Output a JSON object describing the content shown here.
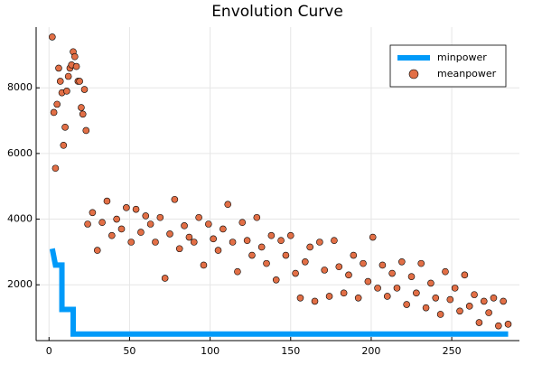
{
  "chart_data": {
    "type": "scatter",
    "title": "Envolution Curve",
    "xlim": [
      -8,
      292
    ],
    "ylim": [
      300,
      9850
    ],
    "xticks": [
      0,
      50,
      100,
      150,
      200,
      250
    ],
    "yticks": [
      2000,
      4000,
      6000,
      8000
    ],
    "grid": true,
    "legend": "top-right",
    "series": [
      {
        "name": "minpower",
        "type": "line",
        "color": "#009af9",
        "x": [
          2,
          4,
          4,
          8,
          8,
          15,
          15,
          285
        ],
        "values": [
          3100,
          2600,
          2600,
          2600,
          1250,
          1250,
          500,
          500
        ]
      },
      {
        "name": "meanpower",
        "type": "scatter",
        "color": "#e26f46",
        "x": [
          2,
          3,
          4,
          5,
          6,
          7,
          8,
          9,
          10,
          11,
          12,
          13,
          14,
          15,
          16,
          17,
          18,
          19,
          20,
          21,
          22,
          23,
          24,
          27,
          30,
          33,
          36,
          39,
          42,
          45,
          48,
          51,
          54,
          57,
          60,
          63,
          66,
          69,
          72,
          75,
          78,
          81,
          84,
          87,
          90,
          93,
          96,
          99,
          102,
          105,
          108,
          111,
          114,
          117,
          120,
          123,
          126,
          129,
          132,
          135,
          138,
          141,
          144,
          147,
          150,
          153,
          156,
          159,
          162,
          165,
          168,
          171,
          174,
          177,
          180,
          183,
          186,
          189,
          192,
          195,
          198,
          201,
          204,
          207,
          210,
          213,
          216,
          219,
          222,
          225,
          228,
          231,
          234,
          237,
          240,
          243,
          246,
          249,
          252,
          255,
          258,
          261,
          264,
          267,
          270,
          273,
          276,
          279,
          282,
          285
        ],
        "values": [
          9550,
          7250,
          5550,
          7500,
          8600,
          8200,
          7850,
          6250,
          6800,
          7900,
          8350,
          8600,
          8700,
          9100,
          8950,
          8650,
          8200,
          8200,
          7400,
          7200,
          7950,
          6700,
          3850,
          4200,
          3050,
          3900,
          4550,
          3500,
          4000,
          3700,
          4350,
          3300,
          4300,
          3600,
          4100,
          3850,
          3300,
          4050,
          2200,
          3550,
          4600,
          3100,
          3800,
          3450,
          3300,
          4050,
          2600,
          3850,
          3400,
          3050,
          3700,
          4450,
          3300,
          2400,
          3900,
          3350,
          2900,
          4050,
          3150,
          2650,
          3500,
          2150,
          3350,
          2900,
          3500,
          2350,
          1600,
          2700,
          3150,
          1500,
          3300,
          2450,
          1650,
          3350,
          2550,
          1750,
          2300,
          2900,
          1600,
          2650,
          2100,
          3450,
          1900,
          2600,
          1650,
          2350,
          1900,
          2700,
          1400,
          2250,
          1750,
          2650,
          1300,
          2050,
          1600,
          1100,
          2400,
          1550,
          1900,
          1200,
          2300,
          1350,
          1700,
          850,
          1500,
          1150,
          1600,
          750,
          1500,
          800
        ]
      }
    ]
  }
}
